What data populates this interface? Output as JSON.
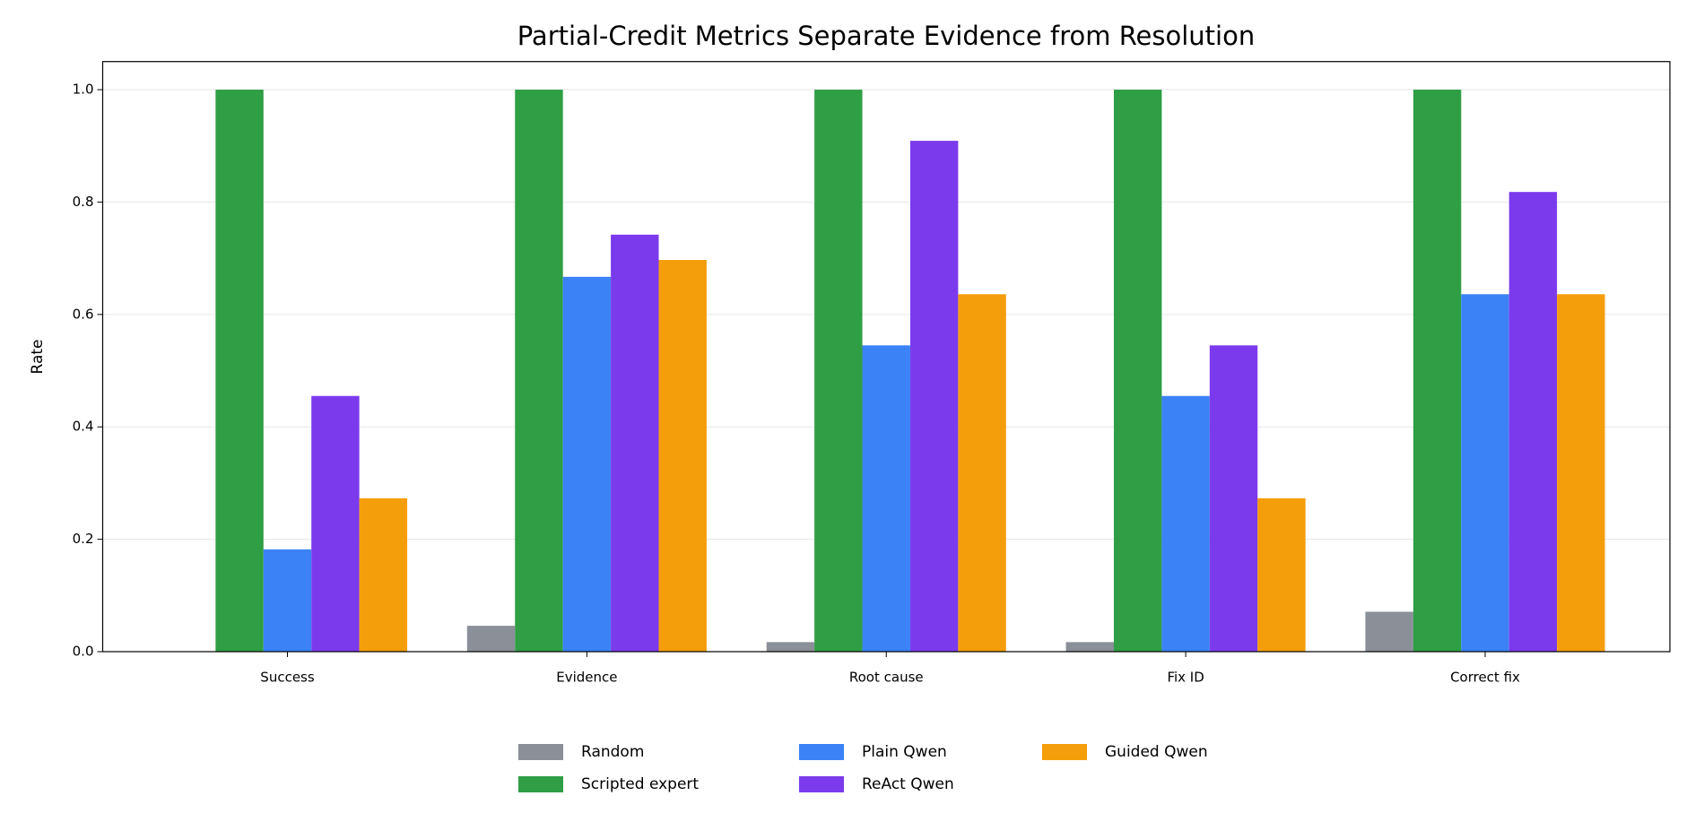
{
  "chart_data": {
    "type": "bar",
    "title": "Partial-Credit Metrics Separate Evidence from Resolution",
    "y_label": "Rate",
    "categories": [
      "Success",
      "Evidence",
      "Root cause",
      "Fix ID",
      "Correct fix"
    ],
    "series": [
      {
        "name": "Random",
        "color": "#8a8f98",
        "values": [
          0,
          0.046,
          0.017,
          0.017,
          0.071
        ]
      },
      {
        "name": "Scripted expert",
        "color": "#2f9e44",
        "values": [
          1.0,
          1.0,
          1.0,
          1.0,
          1.0
        ]
      },
      {
        "name": "Plain Qwen",
        "color": "#3b82f6",
        "values": [
          0.182,
          0.667,
          0.545,
          0.455,
          0.636
        ]
      },
      {
        "name": "ReAct Qwen",
        "color": "#7c3aed",
        "values": [
          0.455,
          0.742,
          0.909,
          0.545,
          0.818
        ]
      },
      {
        "name": "Guided Qwen",
        "color": "#f59e0b",
        "values": [
          0.273,
          0.697,
          0.636,
          0.273,
          0.636
        ]
      }
    ],
    "ylim": [
      0,
      1.05
    ],
    "yticks": [
      {
        "value": 0,
        "label": "0.0"
      },
      {
        "value": 0.2,
        "label": "0.2"
      },
      {
        "value": 0.4,
        "label": "0.4"
      },
      {
        "value": 0.6,
        "label": "0.6"
      },
      {
        "value": 0.8,
        "label": "0.8"
      },
      {
        "value": 1.0,
        "label": "1.0"
      }
    ],
    "grid": true,
    "legend_position": "bottom"
  }
}
